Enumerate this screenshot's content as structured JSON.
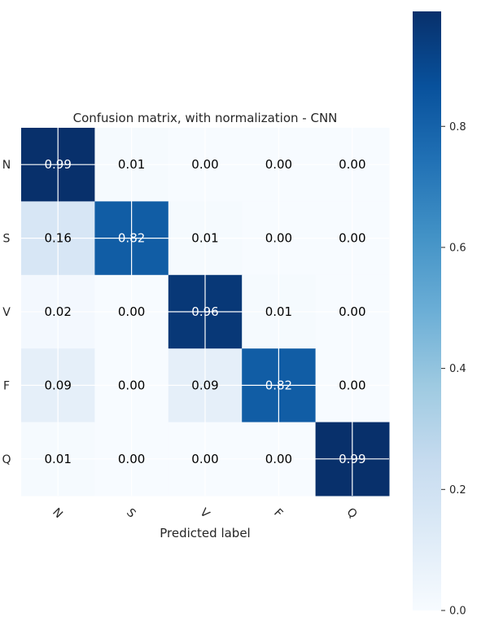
{
  "chart_data": {
    "type": "heatmap",
    "title": "Confusion matrix, with normalization - CNN",
    "xlabel": "Predicted label",
    "ylabel": "",
    "x_categories": [
      "N",
      "S",
      "V",
      "F",
      "Q"
    ],
    "y_categories": [
      "N",
      "S",
      "V",
      "F",
      "Q"
    ],
    "values": [
      [
        0.99,
        0.01,
        0.0,
        0.0,
        0.0
      ],
      [
        0.16,
        0.82,
        0.01,
        0.0,
        0.0
      ],
      [
        0.02,
        0.0,
        0.96,
        0.01,
        0.0
      ],
      [
        0.09,
        0.0,
        0.09,
        0.82,
        0.0
      ],
      [
        0.01,
        0.0,
        0.0,
        0.0,
        0.99
      ]
    ],
    "value_labels": [
      [
        "0.99",
        "0.01",
        "0.00",
        "0.00",
        "0.00"
      ],
      [
        "0.16",
        "0.82",
        "0.01",
        "0.00",
        "0.00"
      ],
      [
        "0.02",
        "0.00",
        "0.96",
        "0.01",
        "0.00"
      ],
      [
        "0.09",
        "0.00",
        "0.09",
        "0.82",
        "0.00"
      ],
      [
        "0.01",
        "0.00",
        "0.00",
        "0.00",
        "0.99"
      ]
    ],
    "colormap": "Blues",
    "colorbar": {
      "range": [
        0.0,
        0.99
      ],
      "ticks": [
        0.0,
        0.2,
        0.4,
        0.6,
        0.8
      ],
      "tick_labels": [
        "0.0",
        "0.2",
        "0.4",
        "0.6",
        "0.8"
      ]
    },
    "grid": true
  },
  "colors": {
    "text_dark": "#000000",
    "text_light": "#ffffff",
    "axis_text": "#262626",
    "grid": "#ffffff"
  }
}
